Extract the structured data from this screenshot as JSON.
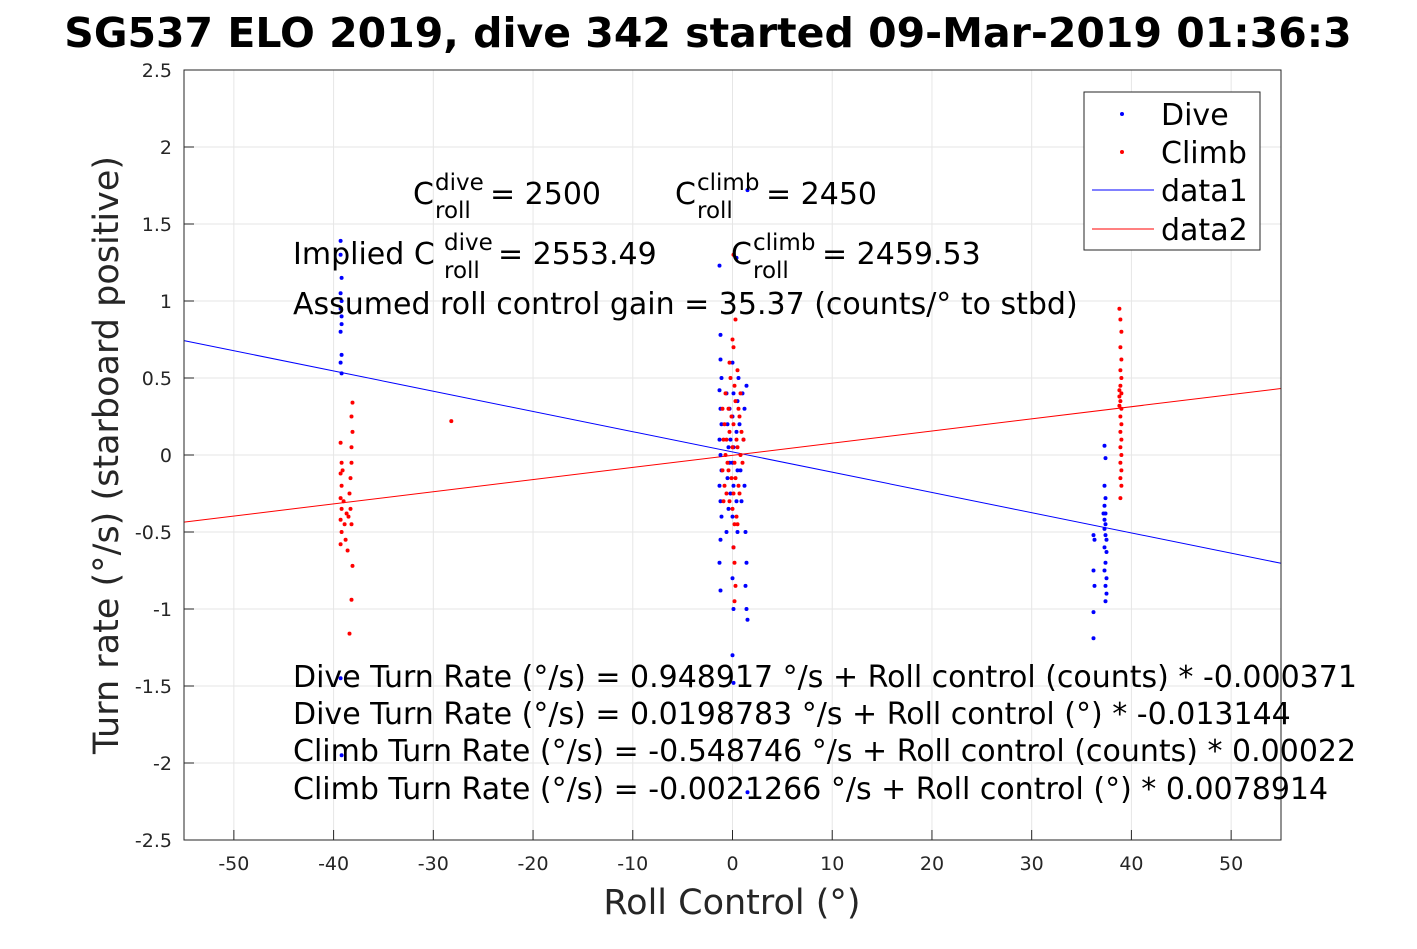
{
  "chart_data": {
    "type": "scatter",
    "title": "SG537 ELO 2019, dive 342 started 09-Mar-2019 01:36:3",
    "xlabel": "Roll Control (°)",
    "ylabel": "Turn rate (°/s) (starboard positive)",
    "xlim": [
      -55,
      55
    ],
    "ylim": [
      -2.5,
      2.5
    ],
    "x_ticks": [
      -50,
      -40,
      -30,
      -20,
      -10,
      0,
      10,
      20,
      30,
      40,
      50
    ],
    "y_ticks": [
      2.5,
      2,
      1.5,
      1,
      0.5,
      0,
      -0.5,
      -1,
      -1.5,
      -2,
      -2.5
    ],
    "x_tick_labels": [
      "-50",
      "-40",
      "-30",
      "-20",
      "-10",
      "0",
      "10",
      "20",
      "30",
      "40",
      "50"
    ],
    "y_tick_labels": [
      "2.5",
      "2",
      "1.5",
      "1",
      "0.5",
      "0",
      "-0.5",
      "-1",
      "-1.5",
      "-2",
      "-2.5"
    ],
    "grid": true,
    "legend_position": "top-right",
    "series": [
      {
        "name": "Dive",
        "kind": "points",
        "color": "#0000ff",
        "points": [
          [
            -39.3,
            1.39
          ],
          [
            -39.3,
            1.3
          ],
          [
            -39.2,
            1.15
          ],
          [
            -39.3,
            1.05
          ],
          [
            -39.2,
            1.0
          ],
          [
            -39.3,
            0.95
          ],
          [
            -39.2,
            0.9
          ],
          [
            -39.2,
            0.85
          ],
          [
            -39.3,
            0.8
          ],
          [
            -39.2,
            0.65
          ],
          [
            -39.3,
            0.6
          ],
          [
            -39.2,
            0.53
          ],
          [
            -39.3,
            -1.45
          ],
          [
            -39.2,
            -1.95
          ],
          [
            -1.3,
            1.23
          ],
          [
            -1.2,
            0.78
          ],
          [
            -1.2,
            0.62
          ],
          [
            -1.1,
            0.5
          ],
          [
            -1.3,
            0.42
          ],
          [
            -1.2,
            0.3
          ],
          [
            -1.1,
            0.2
          ],
          [
            -1.3,
            0.1
          ],
          [
            -1.2,
            0.0
          ],
          [
            -1.1,
            -0.1
          ],
          [
            -1.3,
            -0.2
          ],
          [
            -1.2,
            -0.3
          ],
          [
            -1.1,
            -0.4
          ],
          [
            -1.2,
            -0.55
          ],
          [
            -1.3,
            -0.7
          ],
          [
            -1.2,
            -0.88
          ],
          [
            -0.6,
            0.4
          ],
          [
            -0.5,
            0.2
          ],
          [
            -0.4,
            0.05
          ],
          [
            -0.5,
            -0.15
          ],
          [
            -0.4,
            -0.35
          ],
          [
            -0.6,
            -0.5
          ],
          [
            -0.3,
            0.3
          ],
          [
            -0.2,
            0.1
          ],
          [
            -0.3,
            -0.05
          ],
          [
            -0.2,
            -0.25
          ],
          [
            0.0,
            0.6
          ],
          [
            0.1,
            0.4
          ],
          [
            0.0,
            0.25
          ],
          [
            0.1,
            0.05
          ],
          [
            0.0,
            -0.05
          ],
          [
            0.1,
            -0.2
          ],
          [
            0.0,
            -0.4
          ],
          [
            0.1,
            -0.6
          ],
          [
            0.0,
            -0.8
          ],
          [
            0.1,
            -1.0
          ],
          [
            0.0,
            -1.3
          ],
          [
            0.1,
            -1.48
          ],
          [
            0.4,
            1.28
          ],
          [
            0.5,
            0.35
          ],
          [
            0.4,
            0.15
          ],
          [
            0.5,
            -0.1
          ],
          [
            0.4,
            -0.3
          ],
          [
            0.5,
            -0.5
          ],
          [
            0.6,
            0.5
          ],
          [
            0.7,
            0.2
          ],
          [
            0.8,
            -0.1
          ],
          [
            0.9,
            -0.3
          ],
          [
            1.0,
            0.4
          ],
          [
            1.1,
            0.1
          ],
          [
            1.2,
            -0.2
          ],
          [
            1.3,
            -0.5
          ],
          [
            1.4,
            -0.7
          ],
          [
            1.3,
            -0.85
          ],
          [
            1.4,
            -1.0
          ],
          [
            1.5,
            -1.07
          ],
          [
            1.4,
            0.45
          ],
          [
            1.2,
            0.3
          ],
          [
            1.5,
            1.72
          ],
          [
            1.5,
            -2.19
          ],
          [
            36.2,
            -0.52
          ],
          [
            36.3,
            -0.55
          ],
          [
            36.2,
            -0.75
          ],
          [
            36.3,
            -0.85
          ],
          [
            36.2,
            -1.02
          ],
          [
            36.2,
            -1.19
          ],
          [
            37.3,
            0.06
          ],
          [
            37.4,
            -0.02
          ],
          [
            37.3,
            -0.2
          ],
          [
            37.4,
            -0.28
          ],
          [
            37.3,
            -0.33
          ],
          [
            37.4,
            -0.38
          ],
          [
            37.3,
            -0.42
          ],
          [
            37.4,
            -0.45
          ],
          [
            37.3,
            -0.48
          ],
          [
            37.4,
            -0.52
          ],
          [
            37.5,
            -0.55
          ],
          [
            37.3,
            -0.6
          ],
          [
            37.5,
            -0.63
          ],
          [
            37.4,
            -0.7
          ],
          [
            37.3,
            -0.75
          ],
          [
            37.5,
            -0.8
          ],
          [
            37.4,
            -0.85
          ],
          [
            37.5,
            -0.9
          ],
          [
            37.4,
            -0.95
          ],
          [
            37.2,
            -0.38
          ]
        ]
      },
      {
        "name": "Climb",
        "kind": "points",
        "color": "#ff0000",
        "points": [
          [
            -39.3,
            0.08
          ],
          [
            -39.2,
            -0.05
          ],
          [
            -39.3,
            -0.12
          ],
          [
            -39.2,
            -0.2
          ],
          [
            -39.3,
            -0.28
          ],
          [
            -39.2,
            -0.35
          ],
          [
            -39.3,
            -0.42
          ],
          [
            -39.2,
            -0.5
          ],
          [
            -39.3,
            -0.58
          ],
          [
            -39.1,
            -0.1
          ],
          [
            -39.0,
            -0.3
          ],
          [
            -38.9,
            -0.45
          ],
          [
            -38.8,
            -0.55
          ],
          [
            -38.7,
            -0.38
          ],
          [
            -38.6,
            -0.62
          ],
          [
            -38.5,
            -0.4
          ],
          [
            -38.4,
            -0.25
          ],
          [
            -38.3,
            -0.15
          ],
          [
            -38.2,
            -0.05
          ],
          [
            -38.2,
            0.05
          ],
          [
            -38.1,
            0.15
          ],
          [
            -38.2,
            0.25
          ],
          [
            -38.1,
            0.34
          ],
          [
            -38.3,
            -0.35
          ],
          [
            -38.2,
            -0.45
          ],
          [
            -38.1,
            -0.72
          ],
          [
            -38.2,
            -0.94
          ],
          [
            -38.4,
            -1.16
          ],
          [
            -28.2,
            0.22
          ],
          [
            -1.0,
            0.3
          ],
          [
            -0.9,
            0.1
          ],
          [
            -1.0,
            -0.1
          ],
          [
            -0.9,
            -0.3
          ],
          [
            -0.8,
            0.2
          ],
          [
            -0.7,
            0.0
          ],
          [
            -0.8,
            -0.2
          ],
          [
            -0.7,
            0.4
          ],
          [
            -0.6,
            0.1
          ],
          [
            -0.5,
            -0.05
          ],
          [
            -0.6,
            -0.25
          ],
          [
            -0.4,
            0.3
          ],
          [
            -0.3,
            0.15
          ],
          [
            -0.4,
            -0.1
          ],
          [
            -0.3,
            -0.3
          ],
          [
            -0.2,
            0.5
          ],
          [
            -0.1,
            0.25
          ],
          [
            0.0,
            0.05
          ],
          [
            -0.1,
            -0.15
          ],
          [
            0.0,
            -0.35
          ],
          [
            0.1,
            0.7
          ],
          [
            0.2,
            0.45
          ],
          [
            0.1,
            0.2
          ],
          [
            0.2,
            -0.05
          ],
          [
            0.1,
            -0.25
          ],
          [
            0.2,
            -0.45
          ],
          [
            0.1,
            -0.6
          ],
          [
            0.3,
            0.35
          ],
          [
            0.4,
            0.1
          ],
          [
            0.3,
            -0.15
          ],
          [
            0.4,
            -0.4
          ],
          [
            0.5,
            0.55
          ],
          [
            0.6,
            0.3
          ],
          [
            0.5,
            0.05
          ],
          [
            0.6,
            -0.2
          ],
          [
            0.5,
            -0.45
          ],
          [
            0.7,
            0.25
          ],
          [
            0.8,
            0.0
          ],
          [
            0.7,
            -0.25
          ],
          [
            0.9,
            0.15
          ],
          [
            1.0,
            -0.05
          ],
          [
            0.3,
            0.88
          ],
          [
            0.2,
            -0.7
          ],
          [
            0.3,
            -0.85
          ],
          [
            0.2,
            -0.95
          ],
          [
            0.1,
            1.3
          ],
          [
            0.0,
            0.75
          ],
          [
            -0.3,
            0.6
          ],
          [
            0.8,
            0.4
          ],
          [
            1.1,
            0.1
          ],
          [
            38.8,
            0.95
          ],
          [
            38.9,
            0.88
          ],
          [
            39.0,
            0.8
          ],
          [
            38.9,
            0.7
          ],
          [
            39.0,
            0.62
          ],
          [
            38.9,
            0.55
          ],
          [
            39.0,
            0.5
          ],
          [
            38.9,
            0.45
          ],
          [
            39.0,
            0.4
          ],
          [
            38.9,
            0.35
          ],
          [
            39.0,
            0.3
          ],
          [
            38.9,
            0.25
          ],
          [
            39.0,
            0.2
          ],
          [
            38.9,
            0.15
          ],
          [
            39.0,
            0.1
          ],
          [
            38.9,
            0.05
          ],
          [
            39.0,
            0.0
          ],
          [
            38.9,
            -0.05
          ],
          [
            39.0,
            -0.1
          ],
          [
            38.9,
            -0.15
          ],
          [
            39.0,
            -0.2
          ],
          [
            38.9,
            -0.28
          ],
          [
            38.8,
            0.38
          ],
          [
            38.8,
            0.42
          ],
          [
            38.8,
            0.32
          ]
        ]
      },
      {
        "name": "data1",
        "kind": "line",
        "color": "#0000ff",
        "x": [
          -55,
          55
        ],
        "y": [
          0.743,
          -0.703
        ]
      },
      {
        "name": "data2",
        "kind": "line",
        "color": "#ff0000",
        "x": [
          -55,
          55
        ],
        "y": [
          -0.436,
          0.432
        ]
      }
    ],
    "annotations": {
      "croll_dive": {
        "pre": "C",
        "sup": "dive",
        "sub": "roll",
        "post": " = 2500"
      },
      "croll_climb": {
        "pre": "C",
        "sup": "climb",
        "sub": "roll",
        "post": " = 2450"
      },
      "implied_dive": {
        "pre": "Implied C",
        "sup": "dive",
        "sub": "roll",
        "post": " = 2553.49"
      },
      "implied_climb": {
        "pre": "C",
        "sup": "climb",
        "sub": "roll",
        "post": " = 2459.53"
      },
      "gain": "Assumed roll control gain = 35.37 (counts/° to stbd)",
      "fit_lines": [
        "Dive Turn Rate (°/s) = 0.948917 °/s + Roll control (counts) * -0.000371",
        "Dive Turn Rate (°/s) = 0.0198783 °/s + Roll control (°) * -0.013144",
        "Climb Turn Rate (°/s) = -0.548746 °/s + Roll control (counts) * 0.00022",
        "Climb Turn Rate (°/s) = -0.0021266 °/s + Roll control (°) * 0.0078914"
      ]
    }
  }
}
